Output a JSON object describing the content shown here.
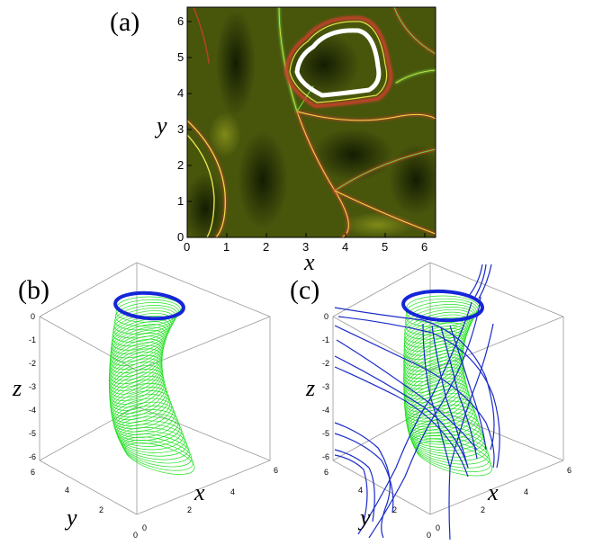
{
  "panels": {
    "a": {
      "label": "(a)",
      "xlabel": "x",
      "ylabel": "y",
      "xticks": [
        "0",
        "1",
        "2",
        "3",
        "4",
        "5",
        "6"
      ],
      "yticks": [
        "0",
        "1",
        "2",
        "3",
        "4",
        "5",
        "6"
      ]
    },
    "b": {
      "label": "(b)",
      "xlabel": "x",
      "ylabel": "y",
      "zlabel": "z",
      "zticks": [
        "0",
        "-1",
        "-2",
        "-3",
        "-4",
        "-5",
        "-6"
      ],
      "xticks": [
        "0",
        "2",
        "4",
        "6"
      ],
      "yticks": [
        "6",
        "4",
        "2",
        "0"
      ]
    },
    "c": {
      "label": "(c)",
      "xlabel": "x",
      "ylabel": "y",
      "zlabel": "z",
      "zticks": [
        "0",
        "-1",
        "-2",
        "-3",
        "-4",
        "-5",
        "-6"
      ],
      "xticks": [
        "0",
        "2",
        "4",
        "6"
      ],
      "yticks": [
        "6",
        "4",
        "2",
        "0"
      ]
    }
  },
  "colors": {
    "field_dark": "#1f2a04",
    "field_mid": "#5b6a10",
    "ridge_red": "#c8402a",
    "ridge_green": "#6ad43c",
    "ridge_yellow": "#e6e24a",
    "orbit_white": "#ffffff",
    "tube_green": "#22e022",
    "orbit_blue": "#1426d8",
    "fieldline_blue": "#1a2bc8"
  }
}
